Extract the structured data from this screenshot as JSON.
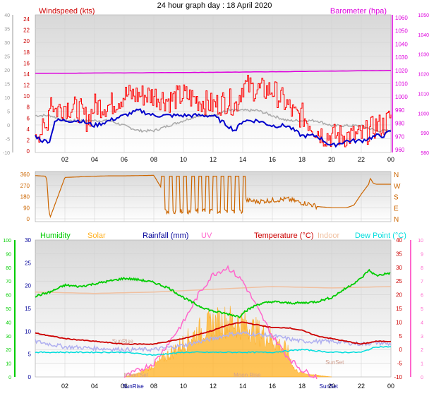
{
  "title": "24 hour graph day : 18 April 2020",
  "colors": {
    "windspeed": "#ff0000",
    "wind_avg": "#0000cc",
    "wind_gray": "#aaaaaa",
    "barometer": "#dd00dd",
    "direction": "#cc6600",
    "humidity": "#00cc00",
    "solar": "#ffb020",
    "rainfall": "#000099",
    "uv": "#ff66cc",
    "temperature": "#cc0000",
    "indoor": "#f0c0a0",
    "dewpoint": "#00dddd",
    "lavender": "#b0b0f0"
  },
  "chart_data": [
    {
      "type": "line",
      "labels": {
        "left": "Windspeed (kts)",
        "right": "Barometer (hpa)"
      },
      "x_ticks": [
        "02",
        "04",
        "06",
        "08",
        "10",
        "12",
        "14",
        "16",
        "18",
        "20",
        "22",
        "00"
      ],
      "y_left": {
        "min": -10,
        "max": 40,
        "ticks": [
          -10,
          -5,
          0,
          5,
          10,
          15,
          20,
          25,
          30,
          35,
          40
        ]
      },
      "y_left_inner": {
        "ticks": [
          0,
          2,
          4,
          6,
          8,
          10,
          12,
          14,
          16,
          18,
          20,
          22,
          24
        ]
      },
      "y_right": {
        "min": 980,
        "max": 1050,
        "ticks": [
          980,
          990,
          1000,
          1010,
          1020,
          1030,
          1040,
          1050
        ]
      },
      "y_right_inner": {
        "ticks": [
          960,
          970,
          980,
          990,
          1000,
          1010,
          1020,
          1030,
          1040,
          1050,
          1060
        ]
      },
      "series": [
        {
          "name": "Windspeed (kts)",
          "hours": [
            0,
            0.7,
            1,
            1.3,
            2,
            3,
            3.5,
            4,
            5,
            6,
            7,
            8,
            9,
            10,
            11,
            12,
            13,
            13.5,
            14,
            15,
            16,
            17,
            17.5,
            18,
            19,
            19.5,
            20,
            21,
            22,
            23,
            23.5,
            24
          ],
          "values": [
            2,
            2,
            9,
            6,
            7,
            6,
            4,
            7,
            7,
            9,
            9,
            9,
            8,
            9,
            8,
            7,
            8,
            7,
            11,
            10,
            10,
            7,
            5,
            5,
            2,
            1,
            1,
            1,
            1,
            3,
            3,
            5
          ]
        },
        {
          "name": "Wind average",
          "hours": [
            0,
            0.5,
            1,
            1.3,
            2,
            3,
            4,
            5,
            6,
            7,
            8,
            9,
            10,
            11,
            12,
            13,
            13.5,
            14,
            15,
            16,
            17,
            18,
            19,
            19.5,
            20,
            21,
            22,
            23,
            23.5,
            24
          ],
          "values": [
            1,
            0,
            0,
            4,
            4,
            4,
            3,
            4,
            5,
            6,
            5,
            5,
            5,
            5,
            5,
            3,
            2,
            4,
            4,
            3,
            3,
            1,
            1,
            0,
            -1,
            0,
            0,
            1,
            1,
            2
          ]
        },
        {
          "name": "Gray trend",
          "hours": [
            0,
            1,
            2,
            3,
            4,
            5,
            6,
            7,
            8,
            9,
            10,
            11,
            12,
            13,
            14,
            15,
            16,
            17,
            18,
            19,
            20,
            21,
            22,
            23,
            24
          ],
          "values": [
            5,
            5,
            4,
            4,
            4,
            4,
            3,
            2,
            2,
            3,
            4,
            5,
            5,
            6,
            6,
            6,
            5,
            4,
            4,
            4,
            3,
            3,
            3,
            2,
            2
          ]
        },
        {
          "name": "Barometer (hpa)",
          "hours": [
            0,
            4,
            8,
            12,
            16,
            20,
            24
          ],
          "values": [
            1017.8,
            1018,
            1018.3,
            1018.6,
            1019,
            1019.5,
            1020
          ]
        }
      ]
    },
    {
      "type": "line",
      "labels": {
        "right": [
          "N",
          "W",
          "S",
          "E",
          "N"
        ]
      },
      "y_left": {
        "ticks": [
          0,
          90,
          180,
          270,
          360
        ]
      },
      "series": [
        {
          "name": "Wind direction",
          "hours": [
            0,
            0.7,
            0.8,
            0.9,
            1,
            2,
            3,
            4,
            5,
            6,
            7,
            8,
            9,
            10,
            11,
            12,
            13,
            14,
            14.2,
            15,
            16,
            17,
            18,
            18.5,
            19,
            20,
            21,
            21.5,
            22,
            22.5,
            22.6,
            22.8,
            23,
            24
          ],
          "values": [
            350,
            345,
            300,
            90,
            10,
            335,
            340,
            345,
            348,
            348,
            350,
            352,
            150,
            40,
            80,
            300,
            60,
            330,
            150,
            140,
            150,
            160,
            130,
            120,
            100,
            90,
            90,
            110,
            200,
            280,
            330,
            290,
            280,
            280
          ]
        }
      ]
    },
    {
      "type": "line",
      "labels": {
        "humidity": "Humidity",
        "solar": "Solar",
        "rainfall": "Rainfall (mm)",
        "uv": "UV",
        "temperature": "Temperature (°C)",
        "indoor": "Indoor",
        "dewpoint": "Dew Point (°C)"
      },
      "annotations": [
        "SunRise",
        "SunSet",
        "Moon Set",
        "Moon Rise",
        "SunRise",
        "SunSet"
      ],
      "y_humidity": {
        "ticks": [
          0,
          10,
          20,
          30,
          40,
          50,
          60,
          70,
          80,
          90,
          100
        ]
      },
      "y_rainfall": {
        "ticks": [
          0,
          5,
          10,
          15,
          20,
          25,
          30
        ]
      },
      "y_temperature": {
        "ticks": [
          -10,
          -5,
          0,
          5,
          10,
          15,
          20,
          25,
          30,
          35,
          40
        ]
      },
      "y_uv": {
        "ticks": [
          0,
          1,
          2,
          3,
          4,
          5,
          6,
          7,
          8,
          9,
          10
        ]
      },
      "series": [
        {
          "name": "Humidity",
          "hours": [
            0,
            1,
            2,
            3,
            4,
            5,
            6,
            7,
            8,
            9,
            10,
            11,
            12,
            13,
            13.8,
            14,
            15,
            16,
            17,
            18,
            19,
            20,
            21,
            22,
            22.5,
            23,
            24
          ],
          "values": [
            59,
            62,
            67,
            66,
            68,
            70,
            72,
            71,
            69,
            65,
            58,
            52,
            48,
            46,
            44,
            47,
            53,
            55,
            54,
            54,
            55,
            58,
            65,
            72,
            78,
            74,
            76
          ]
        },
        {
          "name": "Indoor",
          "hours": [
            0,
            4,
            8,
            12,
            16,
            20,
            24
          ],
          "values": [
            21,
            20.5,
            21,
            22,
            23,
            22.5,
            23
          ]
        },
        {
          "name": "Temperature (°C)",
          "hours": [
            0,
            2,
            4,
            6,
            8,
            10,
            12,
            13,
            14,
            15,
            16,
            17,
            18,
            19,
            20,
            21,
            22,
            23,
            24
          ],
          "values": [
            6,
            4,
            3,
            2,
            2,
            4,
            7,
            9,
            10,
            9,
            8,
            8,
            7,
            5,
            4,
            3,
            2,
            3,
            3
          ]
        },
        {
          "name": "Dew Point (°C)",
          "hours": [
            0,
            2,
            4,
            6,
            8,
            10,
            12,
            14,
            16,
            18,
            20,
            22,
            23,
            24
          ],
          "values": [
            -1,
            -1,
            -1,
            -1,
            -2,
            -1,
            -1,
            -1,
            -1,
            0,
            -1,
            -1,
            1,
            1
          ]
        },
        {
          "name": "Rainfall lavender",
          "hours": [
            0,
            2,
            4,
            6,
            8,
            10,
            12,
            13,
            14,
            15,
            16,
            17,
            18,
            19,
            20,
            22,
            23,
            24
          ],
          "values": [
            3,
            1,
            0.5,
            0,
            0,
            1.5,
            4,
            5.5,
            6,
            5.5,
            5,
            4,
            3,
            3,
            3,
            2,
            2.5,
            2
          ]
        },
        {
          "name": "UV",
          "hours": [
            6,
            7,
            8,
            9,
            10,
            11,
            12,
            13,
            14,
            15,
            16,
            17,
            18,
            19
          ],
          "values": [
            0,
            0.5,
            1,
            2.5,
            4,
            6,
            7.5,
            8,
            7,
            5,
            3,
            1.5,
            0.5,
            0
          ]
        },
        {
          "name": "Solar",
          "hours": [
            6,
            7,
            8,
            9,
            10,
            11,
            12,
            13,
            14,
            15,
            16,
            17,
            17.5,
            18,
            19,
            20
          ],
          "values": [
            0,
            1,
            3,
            6,
            9,
            12,
            14,
            15,
            14,
            12,
            10,
            7,
            2,
            1,
            0.5,
            0
          ]
        }
      ]
    }
  ]
}
